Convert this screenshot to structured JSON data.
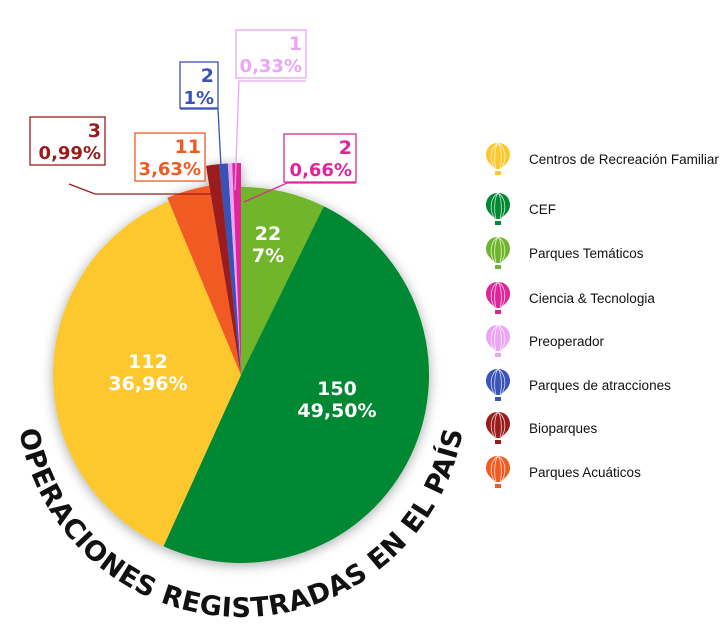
{
  "chart_data": {
    "type": "pie",
    "title": "OPERACIONES REGISTRADAS EN EL PAÍS",
    "slices": [
      {
        "name": "Parques Temáticos",
        "value": 22,
        "pct": "7%",
        "color": "#6fb52c"
      },
      {
        "name": "CEF",
        "value": 150,
        "pct": "49,50%",
        "color": "#008833"
      },
      {
        "name": "Centros de Recreación Familiar",
        "value": 112,
        "pct": "36,96%",
        "color": "#fdc82f"
      },
      {
        "name": "Parques Acuáticos",
        "value": 11,
        "pct": "3,63%",
        "color": "#f15a22"
      },
      {
        "name": "Bioparques",
        "value": 3,
        "pct": "0,99%",
        "color": "#9b1b1b"
      },
      {
        "name": "Parques de atracciones",
        "value": 2,
        "pct": "1%",
        "color": "#3953b8"
      },
      {
        "name": "Preoperador",
        "value": 1,
        "pct": "0,33%",
        "color": "#eca5f5"
      },
      {
        "name": "Ciencia & Tecnologia",
        "value": 2,
        "pct": "0,66%",
        "color": "#e0259a"
      }
    ],
    "legend": {
      "placement": "right",
      "items": [
        "Centros de Recreación Familiar",
        "CEF",
        "Parques Temáticos",
        "Ciencia & Tecnologia",
        "Preoperador",
        "Parques de atracciones",
        "Bioparques",
        "Parques Acuáticos"
      ],
      "colors": [
        "#fdc82f",
        "#008833",
        "#6fb52c",
        "#e0259a",
        "#eca5f5",
        "#3953b8",
        "#9b1b1b",
        "#f15a22"
      ]
    }
  }
}
